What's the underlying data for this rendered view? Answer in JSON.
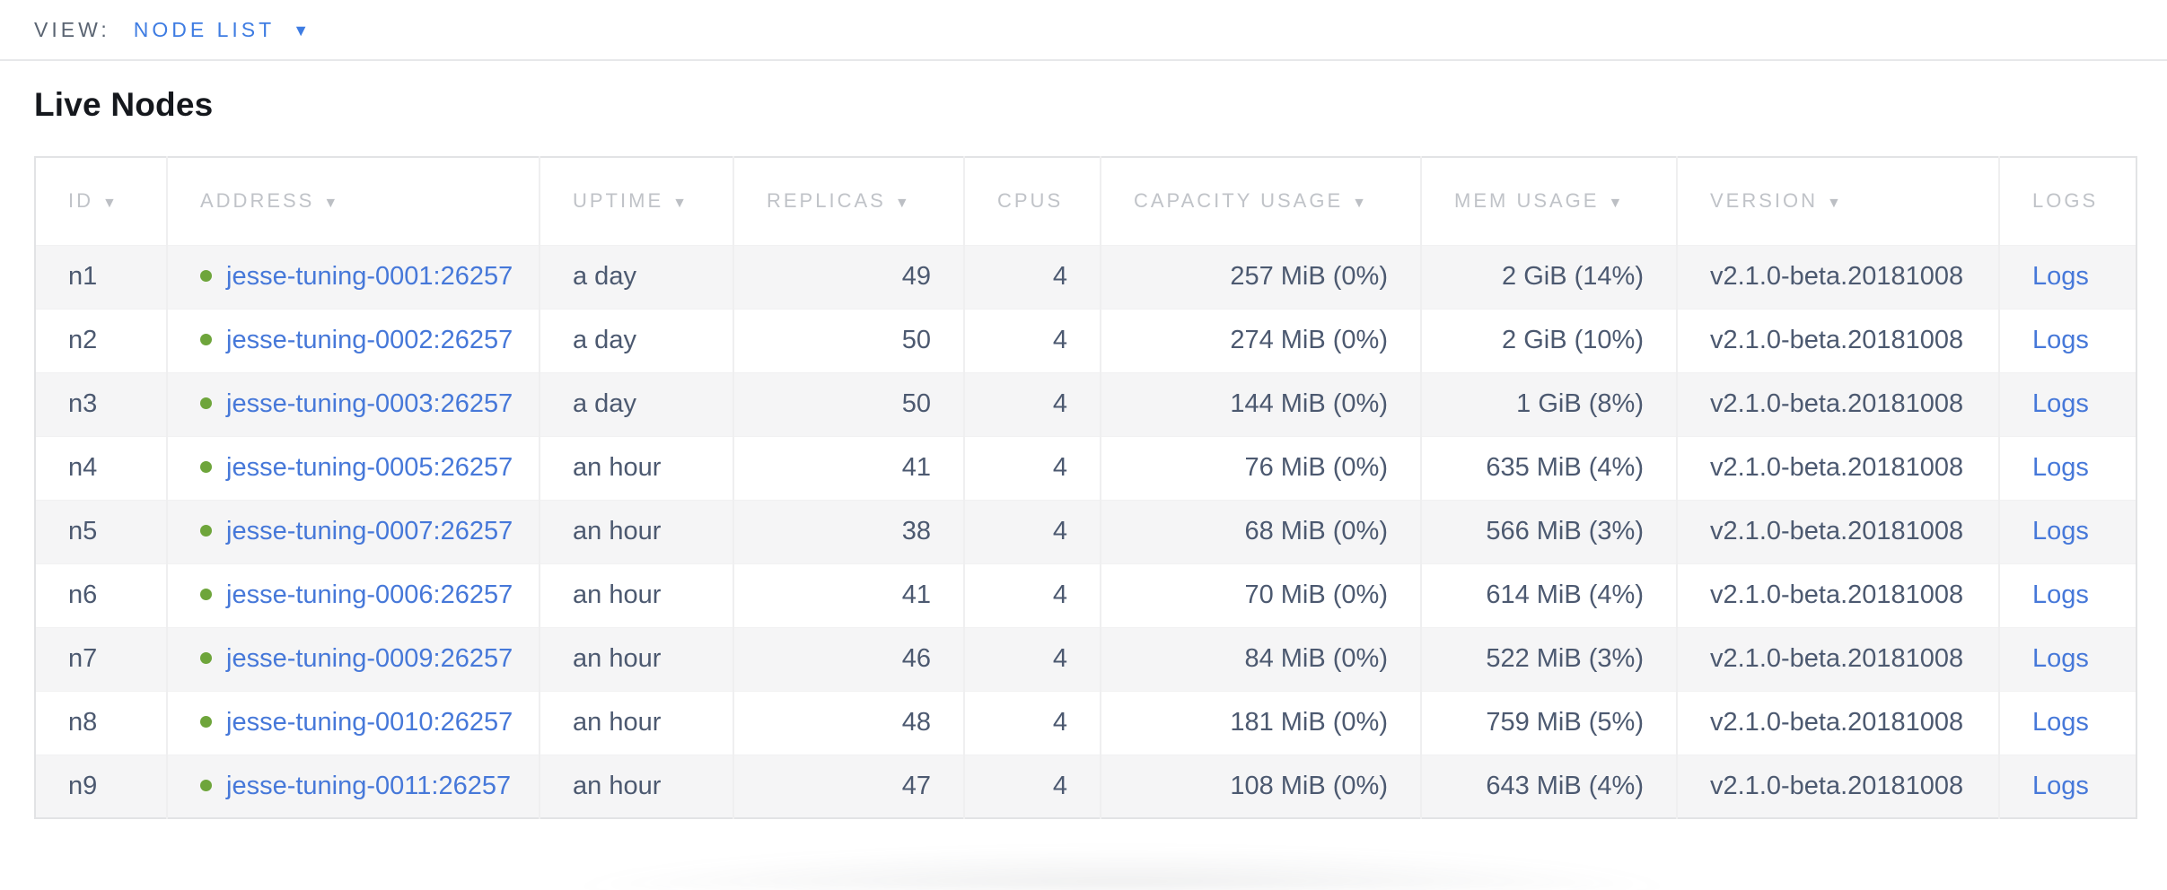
{
  "view_bar": {
    "label": "VIEW:",
    "selected": "NODE LIST"
  },
  "page": {
    "title": "Live Nodes"
  },
  "icons": {
    "sort_desc": "▼",
    "dropdown_chevron": "▼",
    "node_status": "live-green-dot"
  },
  "colors": {
    "accent_blue": "#3e7ce2",
    "link_blue": "#4678d9",
    "node_live_green": "#6ea53b",
    "header_text_gray": "#c0c3c8",
    "cell_text_slate": "#4c5970",
    "row_alt_bg": "#f5f5f6",
    "table_border": "#e2e3e5"
  },
  "table": {
    "columns": [
      {
        "key": "id",
        "label": "ID",
        "sortable": true,
        "align": "left"
      },
      {
        "key": "address",
        "label": "ADDRESS",
        "sortable": true,
        "align": "left"
      },
      {
        "key": "uptime",
        "label": "UPTIME",
        "sortable": true,
        "align": "left"
      },
      {
        "key": "replicas",
        "label": "REPLICAS",
        "sortable": true,
        "align": "right"
      },
      {
        "key": "cpus",
        "label": "CPUS",
        "sortable": false,
        "align": "right"
      },
      {
        "key": "capacity",
        "label": "CAPACITY USAGE",
        "sortable": true,
        "align": "right"
      },
      {
        "key": "mem",
        "label": "MEM USAGE",
        "sortable": true,
        "align": "right"
      },
      {
        "key": "version",
        "label": "VERSION",
        "sortable": true,
        "align": "left"
      },
      {
        "key": "logs",
        "label": "LOGS",
        "sortable": false,
        "align": "left"
      }
    ],
    "rows": [
      {
        "id": "n1",
        "address": "jesse-tuning-0001:26257",
        "uptime": "a day",
        "replicas": "49",
        "cpus": "4",
        "capacity": "257 MiB (0%)",
        "mem": "2 GiB (14%)",
        "version": "v2.1.0-beta.20181008",
        "logs": "Logs"
      },
      {
        "id": "n2",
        "address": "jesse-tuning-0002:26257",
        "uptime": "a day",
        "replicas": "50",
        "cpus": "4",
        "capacity": "274 MiB (0%)",
        "mem": "2 GiB (10%)",
        "version": "v2.1.0-beta.20181008",
        "logs": "Logs"
      },
      {
        "id": "n3",
        "address": "jesse-tuning-0003:26257",
        "uptime": "a day",
        "replicas": "50",
        "cpus": "4",
        "capacity": "144 MiB (0%)",
        "mem": "1 GiB (8%)",
        "version": "v2.1.0-beta.20181008",
        "logs": "Logs"
      },
      {
        "id": "n4",
        "address": "jesse-tuning-0005:26257",
        "uptime": "an hour",
        "replicas": "41",
        "cpus": "4",
        "capacity": "76 MiB (0%)",
        "mem": "635 MiB (4%)",
        "version": "v2.1.0-beta.20181008",
        "logs": "Logs"
      },
      {
        "id": "n5",
        "address": "jesse-tuning-0007:26257",
        "uptime": "an hour",
        "replicas": "38",
        "cpus": "4",
        "capacity": "68 MiB (0%)",
        "mem": "566 MiB (3%)",
        "version": "v2.1.0-beta.20181008",
        "logs": "Logs"
      },
      {
        "id": "n6",
        "address": "jesse-tuning-0006:26257",
        "uptime": "an hour",
        "replicas": "41",
        "cpus": "4",
        "capacity": "70 MiB (0%)",
        "mem": "614 MiB (4%)",
        "version": "v2.1.0-beta.20181008",
        "logs": "Logs"
      },
      {
        "id": "n7",
        "address": "jesse-tuning-0009:26257",
        "uptime": "an hour",
        "replicas": "46",
        "cpus": "4",
        "capacity": "84 MiB (0%)",
        "mem": "522 MiB (3%)",
        "version": "v2.1.0-beta.20181008",
        "logs": "Logs"
      },
      {
        "id": "n8",
        "address": "jesse-tuning-0010:26257",
        "uptime": "an hour",
        "replicas": "48",
        "cpus": "4",
        "capacity": "181 MiB (0%)",
        "mem": "759 MiB (5%)",
        "version": "v2.1.0-beta.20181008",
        "logs": "Logs"
      },
      {
        "id": "n9",
        "address": "jesse-tuning-0011:26257",
        "uptime": "an hour",
        "replicas": "47",
        "cpus": "4",
        "capacity": "108 MiB (0%)",
        "mem": "643 MiB (4%)",
        "version": "v2.1.0-beta.20181008",
        "logs": "Logs"
      }
    ]
  }
}
